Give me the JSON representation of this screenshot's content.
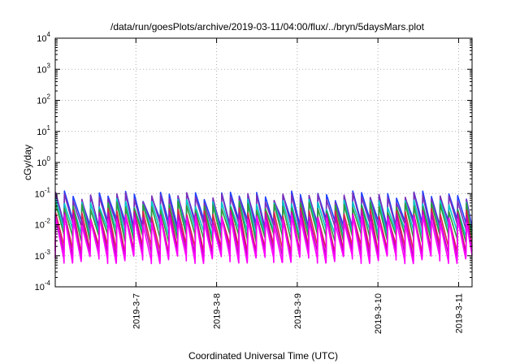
{
  "chart_data": {
    "type": "line",
    "title": "/data/run/goesPlots/archive/2019-03-11/04:00/flux/../bryn/5daysMars.plot",
    "xlabel": "Coordinated Universal Time (UTC)",
    "ylabel": "cGy/day",
    "yscale": "log",
    "ylim": [
      0.0001,
      10000
    ],
    "xlim": [
      "2019-03-06T00:00",
      "2019-03-11T04:00"
    ],
    "grid": true,
    "legend": "none",
    "y_ticks": [
      {
        "base": "10",
        "exp": "-4"
      },
      {
        "base": "10",
        "exp": "-3"
      },
      {
        "base": "10",
        "exp": "-2"
      },
      {
        "base": "10",
        "exp": "-1"
      },
      {
        "base": "10",
        "exp": "0"
      },
      {
        "base": "10",
        "exp": "1"
      },
      {
        "base": "10",
        "exp": "2"
      },
      {
        "base": "10",
        "exp": "3"
      },
      {
        "base": "10",
        "exp": "4"
      }
    ],
    "x_ticks": [
      {
        "label": "2019-3-7",
        "at": "2019-03-07T00:00"
      },
      {
        "label": "2019-3-8",
        "at": "2019-03-08T00:00"
      },
      {
        "label": "2019-3-9",
        "at": "2019-03-09T00:00"
      },
      {
        "label": "2019-3-10",
        "at": "2019-03-10T00:00"
      },
      {
        "label": "2019-3-11",
        "at": "2019-03-11T00:00"
      }
    ],
    "cycle_hours": 2.6,
    "series": [
      {
        "color": "#1f3fff",
        "peak": 0.09,
        "trough": 0.012
      },
      {
        "color": "#7a2fb8",
        "peak": 0.08,
        "trough": 0.009
      },
      {
        "color": "#00c8c8",
        "peak": 0.05,
        "trough": 0.006
      },
      {
        "color": "#2f9a3a",
        "peak": 0.04,
        "trough": 0.004
      },
      {
        "color": "#e0204a",
        "peak": 0.025,
        "trough": 0.0018
      },
      {
        "color": "#c000c0",
        "peak": 0.02,
        "trough": 0.0012
      },
      {
        "color": "#ff00ff",
        "peak": 0.015,
        "trough": 0.0008
      }
    ]
  }
}
